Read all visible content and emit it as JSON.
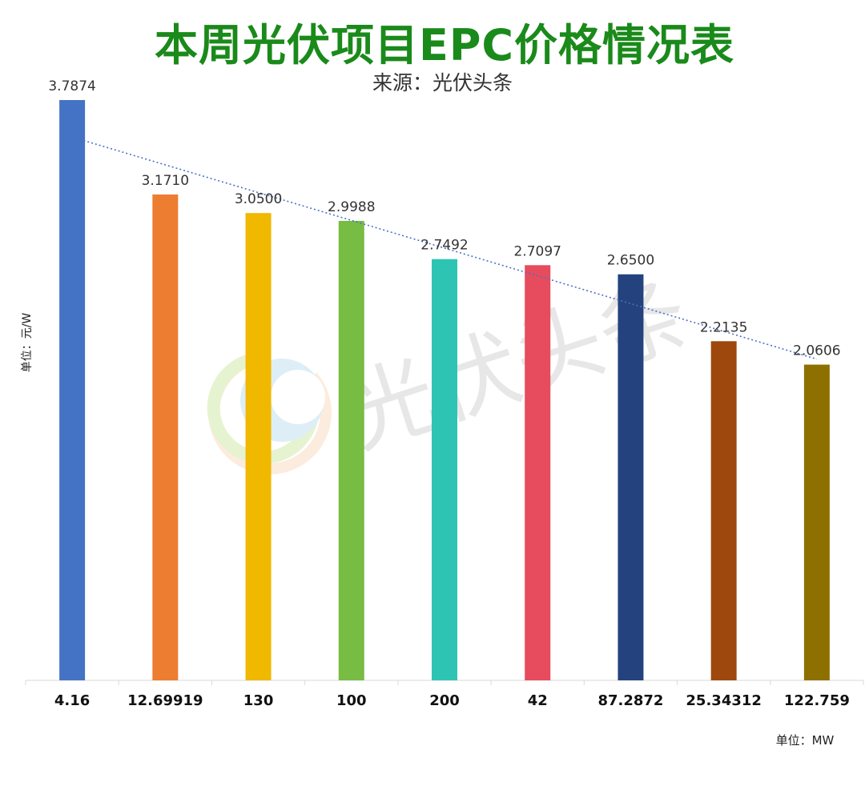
{
  "chart_data": {
    "type": "bar",
    "title": "本周光伏项目EPC价格情况表",
    "subtitle": "来源：光伏头条",
    "ylabel": "单位：元/W",
    "xlabel": "单位：MW",
    "categories": [
      "4.16",
      "12.69919",
      "130",
      "100",
      "200",
      "42",
      "87.2872",
      "25.34312",
      "122.759"
    ],
    "values": [
      3.7874,
      3.171,
      3.05,
      2.9988,
      2.7492,
      2.7097,
      2.65,
      2.2135,
      2.0606
    ],
    "value_labels": [
      "3.7874",
      "3.1710",
      "3.0500",
      "2.9988",
      "2.7492",
      "2.7097",
      "2.6500",
      "2.2135",
      "2.0606"
    ],
    "colors": [
      "#4472c4",
      "#ed7d31",
      "#f1b800",
      "#77bc43",
      "#2ec4b4",
      "#e64b5e",
      "#24427e",
      "#9e480e",
      "#8e7000"
    ],
    "trendline": {
      "type": "linear",
      "style": "dotted",
      "color": "#4a72c4"
    },
    "ylim": [
      0,
      3.8
    ],
    "grid": false,
    "legend": "none",
    "watermark": "光伏头条"
  }
}
